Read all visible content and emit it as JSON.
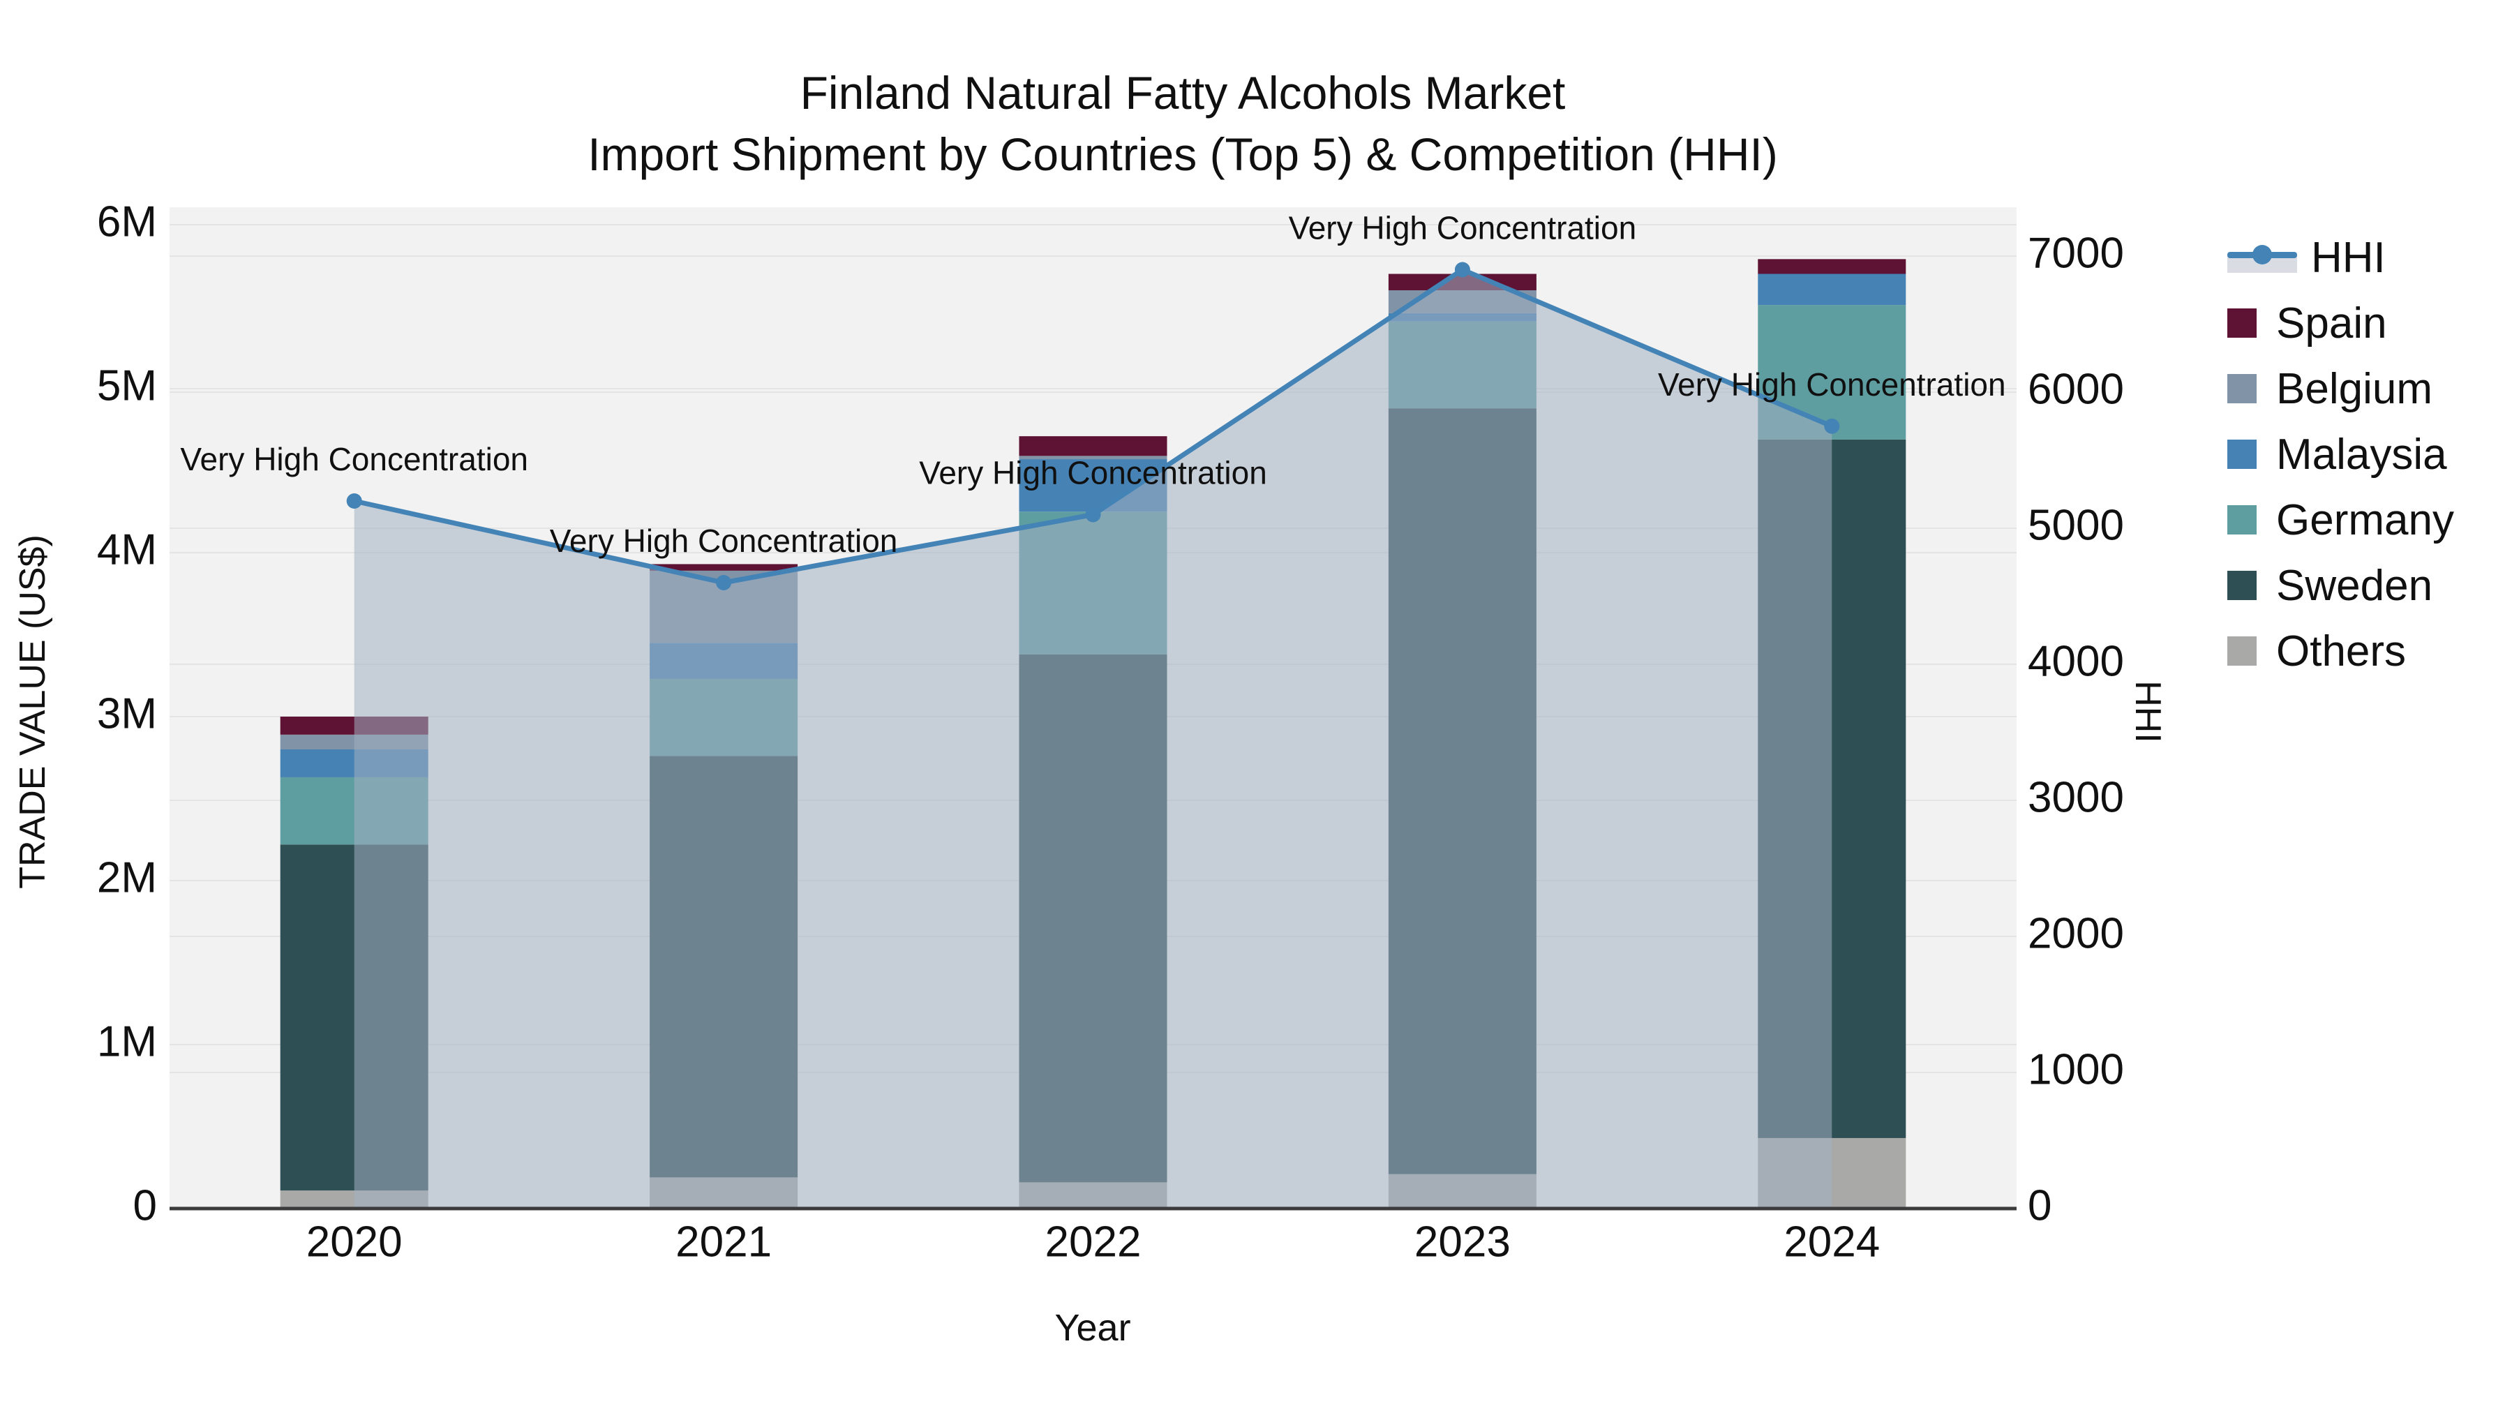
{
  "title": {
    "line1": "Finland Natural Fatty Alcohols Market",
    "line2": "Import Shipment by Countries (Top 5) & Competition (HHI)"
  },
  "axes": {
    "x_title": "Year",
    "y_left_title": "TRADE VALUE (US$)",
    "y_right_title": "HHI"
  },
  "legend": {
    "items": [
      {
        "label": "HHI",
        "type": "line",
        "color": "#4383b6"
      },
      {
        "label": "Spain",
        "type": "bar",
        "color": "#5e1334"
      },
      {
        "label": "Belgium",
        "type": "bar",
        "color": "#8093a7"
      },
      {
        "label": "Malaysia",
        "type": "bar",
        "color": "#4682b4"
      },
      {
        "label": "Germany",
        "type": "bar",
        "color": "#5f9ea0"
      },
      {
        "label": "Sweden",
        "type": "bar",
        "color": "#2e4f53"
      },
      {
        "label": "Others",
        "type": "bar",
        "color": "#a9aaa7"
      }
    ]
  },
  "colors": {
    "figure_bg": "#ffffff",
    "plot_bg": "#f2f2f2",
    "gridline": "#e4e4e4",
    "axis_line": "#3b3b3b",
    "text": "#101010",
    "hhi_line": "#4383b6",
    "hhi_area_fill": "rgba(163,177,194,0.55)"
  },
  "chart_data": {
    "type": "bar",
    "subtype": "stacked-bars-with-line-overlay",
    "categories": [
      "2020",
      "2021",
      "2022",
      "2023",
      "2024"
    ],
    "bar_unit": "million US$",
    "series": [
      {
        "name": "Spain",
        "color": "#5e1334",
        "values": [
          0.11,
          0.04,
          0.12,
          0.1,
          0.09
        ]
      },
      {
        "name": "Belgium",
        "color": "#8093a7",
        "values": [
          0.09,
          0.44,
          0.02,
          0.14,
          0.0
        ]
      },
      {
        "name": "Malaysia",
        "color": "#4682b4",
        "values": [
          0.17,
          0.22,
          0.32,
          0.05,
          0.19
        ]
      },
      {
        "name": "Germany",
        "color": "#5f9ea0",
        "values": [
          0.41,
          0.47,
          0.87,
          0.53,
          0.82
        ]
      },
      {
        "name": "Sweden",
        "color": "#2e4f53",
        "values": [
          2.11,
          2.57,
          3.22,
          4.67,
          4.26
        ]
      },
      {
        "name": "Others",
        "color": "#a9aaa7",
        "values": [
          0.11,
          0.19,
          0.16,
          0.21,
          0.43
        ]
      }
    ],
    "stack_order_bottom_to_top": [
      "Others",
      "Sweden",
      "Germany",
      "Malaysia",
      "Belgium",
      "Spain"
    ],
    "bar_totals": [
      3.0,
      3.93,
      4.71,
      5.7,
      5.79
    ],
    "line_series": {
      "name": "HHI",
      "color": "#4383b6",
      "fill": "tozeroy",
      "fill_color": "rgba(163,177,194,0.55)",
      "values": [
        5200,
        4600,
        5100,
        6900,
        5750
      ]
    },
    "annotations": [
      {
        "text": "Very High Concentration",
        "category": "2020"
      },
      {
        "text": "Very High Concentration",
        "category": "2021"
      },
      {
        "text": "Very High Concentration",
        "category": "2022"
      },
      {
        "text": "Very High Concentration",
        "category": "2023"
      },
      {
        "text": "Very High Concentration",
        "category": "2024"
      }
    ],
    "y_left": {
      "tick_labels": [
        "0",
        "1M",
        "2M",
        "3M",
        "4M",
        "5M",
        "6M"
      ],
      "tick_values": [
        0,
        1,
        2,
        3,
        4,
        5,
        6
      ],
      "range": [
        0,
        6.12
      ]
    },
    "y_right": {
      "tick_labels": [
        "0",
        "1000",
        "2000",
        "3000",
        "4000",
        "5000",
        "6000",
        "7000"
      ],
      "tick_values": [
        0,
        1000,
        2000,
        3000,
        4000,
        5000,
        6000,
        7000
      ],
      "range": [
        0,
        7360
      ]
    },
    "grid": true,
    "legend_position": "right"
  }
}
